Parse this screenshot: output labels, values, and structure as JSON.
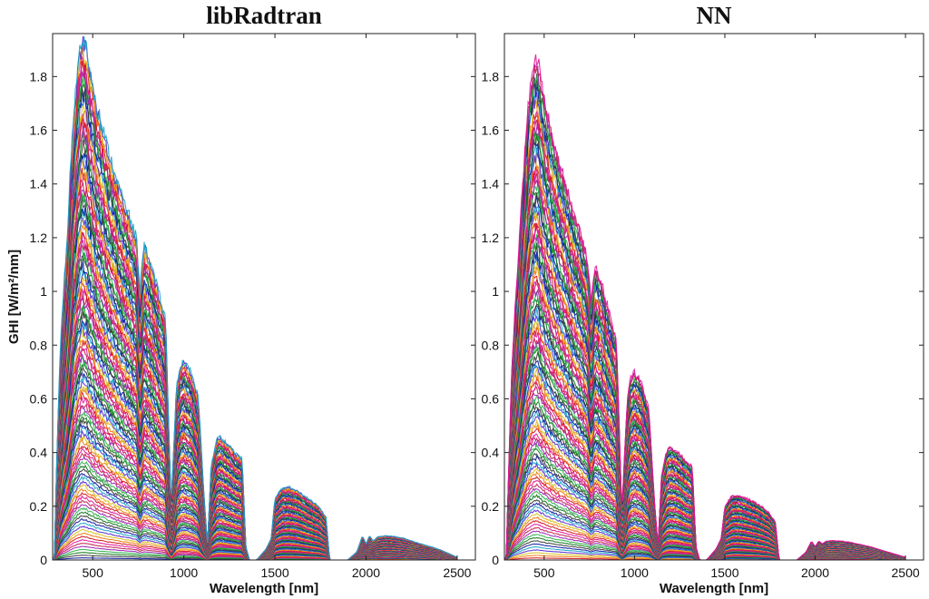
{
  "chart_data": [
    {
      "type": "line",
      "title": "libRadtran",
      "xlabel": "Wavelength [nm]",
      "ylabel": "GHI [W/m²/nm]",
      "xlim": [
        280,
        2600
      ],
      "ylim": [
        0,
        1.96
      ],
      "xticks": [
        500,
        1000,
        1500,
        2000,
        2500
      ],
      "yticks": [
        0,
        0.2,
        0.4,
        0.6,
        0.8,
        1,
        1.2,
        1.4,
        1.6,
        1.8
      ],
      "num_spectra": 120,
      "envelope": {
        "x": [
          290,
          300,
          320,
          340,
          360,
          380,
          400,
          420,
          440,
          460,
          480,
          500,
          520,
          550,
          580,
          620,
          660,
          700,
          740,
          760,
          780,
          820,
          860,
          900,
          930,
          960,
          980,
          1000,
          1040,
          1080,
          1110,
          1130,
          1150,
          1180,
          1200,
          1230,
          1260,
          1280,
          1320,
          1340,
          1360,
          1400,
          1450,
          1480,
          1500,
          1540,
          1580,
          1620,
          1680,
          1740,
          1780,
          1800,
          1900,
          1950,
          1980,
          2000,
          2020,
          2040,
          2060,
          2100,
          2150,
          2200,
          2300,
          2400,
          2500
        ],
        "y": [
          0.0,
          0.3,
          0.75,
          1.0,
          1.2,
          1.5,
          1.7,
          1.85,
          1.95,
          1.93,
          1.85,
          1.78,
          1.7,
          1.62,
          1.54,
          1.45,
          1.36,
          1.28,
          1.2,
          1.0,
          1.18,
          1.1,
          1.0,
          0.9,
          0.2,
          0.65,
          0.72,
          0.74,
          0.7,
          0.6,
          0.25,
          0.05,
          0.35,
          0.45,
          0.46,
          0.44,
          0.42,
          0.4,
          0.38,
          0.05,
          0.0,
          0.0,
          0.04,
          0.08,
          0.23,
          0.27,
          0.27,
          0.26,
          0.23,
          0.2,
          0.16,
          0.0,
          0.0,
          0.03,
          0.09,
          0.06,
          0.09,
          0.07,
          0.085,
          0.09,
          0.088,
          0.082,
          0.06,
          0.04,
          0.01
        ]
      }
    },
    {
      "type": "line",
      "title": "NN",
      "xlabel": "Wavelength [nm]",
      "ylabel": "",
      "xlim": [
        280,
        2600
      ],
      "ylim": [
        0,
        1.96
      ],
      "xticks": [
        500,
        1000,
        1500,
        2000,
        2500
      ],
      "yticks": [
        0,
        0.2,
        0.4,
        0.6,
        0.8,
        1,
        1.2,
        1.4,
        1.6,
        1.8
      ],
      "num_spectra": 120,
      "envelope": {
        "x": [
          290,
          300,
          320,
          340,
          360,
          380,
          400,
          420,
          440,
          460,
          480,
          500,
          520,
          550,
          580,
          620,
          660,
          700,
          740,
          760,
          780,
          820,
          860,
          900,
          930,
          960,
          980,
          1000,
          1040,
          1080,
          1110,
          1130,
          1150,
          1180,
          1200,
          1230,
          1260,
          1280,
          1320,
          1340,
          1360,
          1400,
          1450,
          1480,
          1500,
          1540,
          1580,
          1620,
          1680,
          1740,
          1780,
          1800,
          1900,
          1950,
          1980,
          2000,
          2020,
          2040,
          2060,
          2100,
          2150,
          2200,
          2300,
          2400,
          2500
        ],
        "y": [
          0.0,
          0.25,
          0.7,
          0.95,
          1.15,
          1.4,
          1.6,
          1.75,
          1.84,
          1.88,
          1.8,
          1.72,
          1.65,
          1.57,
          1.49,
          1.4,
          1.3,
          1.22,
          1.12,
          0.95,
          1.1,
          1.03,
          0.92,
          0.82,
          0.18,
          0.6,
          0.68,
          0.7,
          0.66,
          0.56,
          0.22,
          0.05,
          0.32,
          0.41,
          0.42,
          0.41,
          0.39,
          0.37,
          0.35,
          0.05,
          0.0,
          0.0,
          0.04,
          0.08,
          0.2,
          0.24,
          0.24,
          0.23,
          0.21,
          0.18,
          0.14,
          0.0,
          0.0,
          0.03,
          0.07,
          0.05,
          0.07,
          0.06,
          0.07,
          0.072,
          0.07,
          0.065,
          0.05,
          0.03,
          0.01
        ]
      }
    }
  ],
  "line_colors": [
    "#0a1a9e",
    "#d4141c",
    "#0e7a1a",
    "#d6c21e",
    "#9b1fb0",
    "#1aa5c7",
    "#e0169a",
    "#3a3a3a",
    "#f07b10",
    "#2bb34a",
    "#5a2ad0",
    "#c21e4f"
  ]
}
